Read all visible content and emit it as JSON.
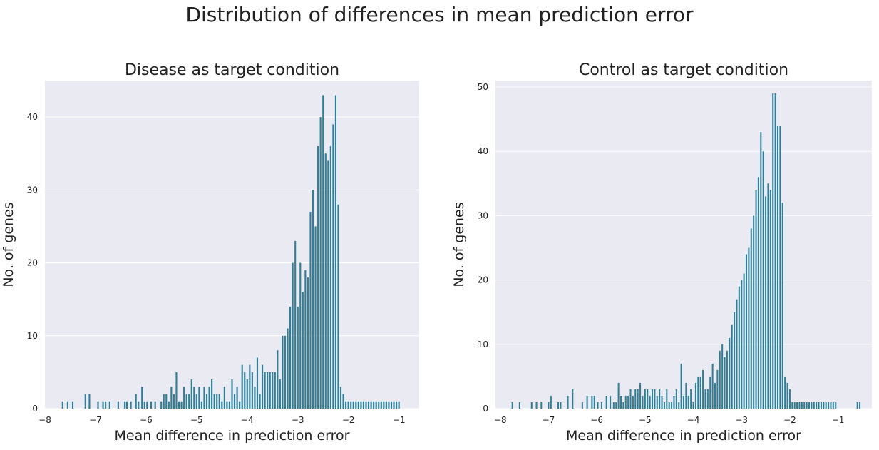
{
  "figure": {
    "suptitle": "Distribution of differences in mean prediction error"
  },
  "colors": {
    "bar": "#2f7f98",
    "background": "#eaeaf2",
    "grid": "#ffffff"
  },
  "chart_data": [
    {
      "type": "bar",
      "title": "Disease as target condition",
      "xlabel": "Mean difference in prediction error",
      "ylabel": "No. of genes",
      "xlim": [
        -8.0,
        -0.6
      ],
      "ylim": [
        0,
        45
      ],
      "xticks": [
        -8,
        -7,
        -6,
        -5,
        -4,
        -3,
        -2,
        -1
      ],
      "xtick_labels": [
        "−8",
        "−7",
        "−6",
        "−5",
        "−4",
        "−3",
        "−2",
        "−1"
      ],
      "yticks": [
        0,
        10,
        20,
        30,
        40
      ],
      "ytick_labels": [
        "0",
        "10",
        "20",
        "30",
        "40"
      ],
      "grid": true,
      "bin_width": 0.03,
      "x": [
        -7.65,
        -7.55,
        -7.45,
        -7.2,
        -7.12,
        -6.95,
        -6.85,
        -6.8,
        -6.72,
        -6.55,
        -6.42,
        -6.38,
        -6.3,
        -6.2,
        -6.15,
        -6.08,
        -6.03,
        -5.98,
        -5.9,
        -5.82,
        -5.7,
        -5.65,
        -5.6,
        -5.55,
        -5.5,
        -5.45,
        -5.4,
        -5.35,
        -5.3,
        -5.25,
        -5.2,
        -5.15,
        -5.1,
        -5.05,
        -5.0,
        -4.95,
        -4.9,
        -4.85,
        -4.8,
        -4.75,
        -4.7,
        -4.65,
        -4.6,
        -4.55,
        -4.5,
        -4.45,
        -4.4,
        -4.35,
        -4.3,
        -4.25,
        -4.2,
        -4.15,
        -4.1,
        -4.05,
        -4.0,
        -3.95,
        -3.9,
        -3.85,
        -3.8,
        -3.75,
        -3.7,
        -3.65,
        -3.6,
        -3.55,
        -3.5,
        -3.45,
        -3.4,
        -3.35,
        -3.3,
        -3.25,
        -3.2,
        -3.15,
        -3.1,
        -3.05,
        -3.0,
        -2.95,
        -2.9,
        -2.85,
        -2.8,
        -2.75,
        -2.7,
        -2.65,
        -2.6,
        -2.55,
        -2.5,
        -2.45,
        -2.4,
        -2.35,
        -2.3,
        -2.25,
        -2.2,
        -2.15,
        -2.1,
        -2.05,
        -2.0,
        -1.95,
        -1.9,
        -1.85,
        -1.8,
        -1.75,
        -1.7,
        -1.65,
        -1.6,
        -1.55,
        -1.5,
        -1.45,
        -1.4,
        -1.35,
        -1.3,
        -1.25,
        -1.2,
        -1.15,
        -1.1,
        -1.05,
        -1.0
      ],
      "values": [
        1,
        1,
        1,
        2,
        2,
        1,
        1,
        1,
        1,
        1,
        1,
        1,
        1,
        2,
        1,
        3,
        1,
        1,
        1,
        1,
        1,
        2,
        2,
        1,
        3,
        2,
        5,
        1,
        1,
        3,
        2,
        2,
        4,
        3,
        2,
        3,
        1,
        3,
        2,
        3,
        4,
        2,
        2,
        2,
        1,
        3,
        1,
        1,
        4,
        2,
        3,
        1,
        6,
        5,
        4,
        6,
        5,
        3,
        7,
        2,
        6,
        5,
        5,
        5,
        5,
        5,
        8,
        4,
        10,
        10,
        11,
        14,
        20,
        23,
        14,
        20,
        16,
        19,
        18,
        27,
        30,
        25,
        36,
        40,
        43,
        35,
        34,
        36,
        39,
        43,
        28,
        3,
        2,
        1,
        1,
        1,
        1,
        1,
        1,
        1,
        1,
        1,
        1,
        1,
        1,
        1,
        1,
        1,
        1,
        1,
        1,
        1,
        1,
        1,
        1
      ],
      "values_note": ""
    },
    {
      "type": "bar",
      "title": "Control as target condition",
      "xlabel": "Mean difference in prediction error",
      "ylabel": "No. of genes",
      "xlim": [
        -8.1,
        -0.3
      ],
      "ylim": [
        0,
        51
      ],
      "xticks": [
        -8,
        -7,
        -6,
        -5,
        -4,
        -3,
        -2,
        -1
      ],
      "xtick_labels": [
        "−8",
        "−7",
        "−6",
        "−5",
        "−4",
        "−3",
        "−2",
        "−1"
      ],
      "yticks": [
        0,
        10,
        20,
        30,
        40,
        50
      ],
      "ytick_labels": [
        "0",
        "10",
        "20",
        "30",
        "40",
        "50"
      ],
      "grid": true,
      "bin_width": 0.03,
      "x": [
        -7.75,
        -7.6,
        -7.35,
        -7.25,
        -7.15,
        -7.0,
        -6.95,
        -6.8,
        -6.75,
        -6.6,
        -6.5,
        -6.3,
        -6.2,
        -6.1,
        -6.05,
        -5.98,
        -5.9,
        -5.8,
        -5.72,
        -5.65,
        -5.6,
        -5.55,
        -5.5,
        -5.45,
        -5.4,
        -5.35,
        -5.3,
        -5.25,
        -5.2,
        -5.15,
        -5.1,
        -5.05,
        -5.0,
        -4.95,
        -4.9,
        -4.85,
        -4.8,
        -4.75,
        -4.7,
        -4.65,
        -4.6,
        -4.55,
        -4.5,
        -4.45,
        -4.4,
        -4.35,
        -4.3,
        -4.25,
        -4.2,
        -4.15,
        -4.1,
        -4.05,
        -4.0,
        -3.95,
        -3.9,
        -3.85,
        -3.8,
        -3.75,
        -3.7,
        -3.65,
        -3.6,
        -3.55,
        -3.5,
        -3.45,
        -3.4,
        -3.35,
        -3.3,
        -3.25,
        -3.2,
        -3.15,
        -3.1,
        -3.05,
        -3.0,
        -2.95,
        -2.9,
        -2.85,
        -2.8,
        -2.75,
        -2.7,
        -2.65,
        -2.6,
        -2.55,
        -2.5,
        -2.45,
        -2.4,
        -2.35,
        -2.3,
        -2.25,
        -2.2,
        -2.15,
        -2.1,
        -2.05,
        -2.0,
        -1.95,
        -1.9,
        -1.85,
        -1.8,
        -1.75,
        -1.7,
        -1.65,
        -1.6,
        -1.55,
        -1.5,
        -1.45,
        -1.4,
        -1.35,
        -1.3,
        -1.25,
        -1.2,
        -1.15,
        -1.1,
        -1.05,
        -0.6,
        -0.55
      ],
      "values": [
        1,
        1,
        1,
        1,
        1,
        1,
        2,
        1,
        1,
        2,
        3,
        1,
        2,
        2,
        2,
        1,
        1,
        2,
        2,
        1,
        1,
        4,
        2,
        1,
        2,
        2,
        3,
        2,
        3,
        3,
        4,
        2,
        3,
        3,
        2,
        3,
        3,
        2,
        3,
        2,
        1,
        3,
        1,
        1,
        2,
        3,
        1,
        7,
        2,
        4,
        2,
        3,
        1,
        4,
        5,
        5,
        6,
        3,
        3,
        5,
        7,
        4,
        6,
        9,
        10,
        8,
        9,
        11,
        13,
        15,
        17,
        19,
        20,
        21,
        24,
        25,
        28,
        30,
        34,
        36,
        43,
        40,
        33,
        35,
        34,
        49,
        49,
        44,
        44,
        32,
        5,
        4,
        3,
        1,
        1,
        1,
        1,
        1,
        1,
        1,
        1,
        1,
        1,
        1,
        1,
        1,
        1,
        1,
        1,
        1,
        1,
        1,
        1,
        1
      ],
      "values_note": ""
    }
  ]
}
